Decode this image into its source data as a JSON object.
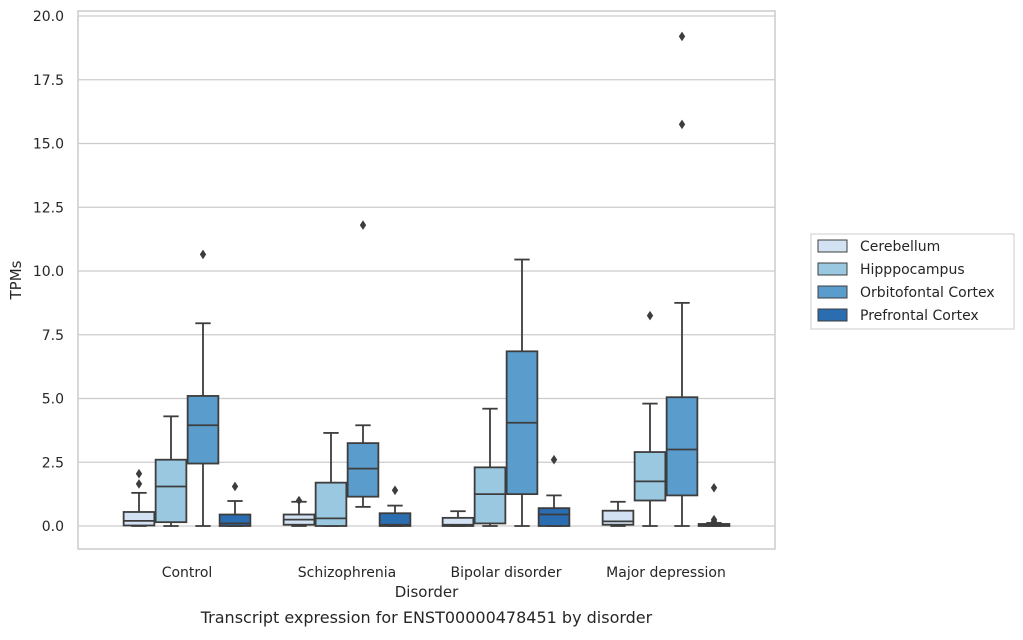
{
  "caption": "Transcript expression for ENST00000478451 by disorder",
  "chart_data": {
    "type": "box",
    "xlabel": "Disorder",
    "ylabel": "TPMs",
    "ylim": [
      -0.9,
      20.2
    ],
    "yticks": [
      "0.0",
      "2.5",
      "5.0",
      "7.5",
      "10.0",
      "12.5",
      "15.0",
      "17.5",
      "20.0"
    ],
    "ytick_values": [
      0,
      2.5,
      5,
      7.5,
      10,
      12.5,
      15,
      17.5,
      20
    ],
    "grid": true,
    "legend_position": "right",
    "categories": [
      "Control",
      "Schizophrenia",
      "Bipolar disorder",
      "Major depression"
    ],
    "series": [
      {
        "name": "Cerebellum",
        "color": "#d2e2f2",
        "boxes": [
          {
            "whislo": 0.0,
            "q1": 0.02,
            "med": 0.2,
            "q3": 0.55,
            "whishi": 1.3,
            "fliers": [
              1.65,
              2.05
            ]
          },
          {
            "whislo": 0.0,
            "q1": 0.05,
            "med": 0.25,
            "q3": 0.45,
            "whishi": 0.95,
            "fliers": [
              1.0
            ]
          },
          {
            "whislo": 0.0,
            "q1": 0.0,
            "med": 0.05,
            "q3": 0.32,
            "whishi": 0.58,
            "fliers": []
          },
          {
            "whislo": 0.0,
            "q1": 0.05,
            "med": 0.18,
            "q3": 0.6,
            "whishi": 0.95,
            "fliers": []
          }
        ]
      },
      {
        "name": "Hipppocampus",
        "color": "#9ac8e0",
        "boxes": [
          {
            "whislo": 0.0,
            "q1": 0.15,
            "med": 1.55,
            "q3": 2.6,
            "whishi": 4.3,
            "fliers": []
          },
          {
            "whislo": 0.0,
            "q1": 0.0,
            "med": 0.3,
            "q3": 1.7,
            "whishi": 3.65,
            "fliers": []
          },
          {
            "whislo": 0.0,
            "q1": 0.1,
            "med": 1.25,
            "q3": 2.3,
            "whishi": 4.6,
            "fliers": []
          },
          {
            "whislo": 0.0,
            "q1": 1.0,
            "med": 1.75,
            "q3": 2.9,
            "whishi": 4.8,
            "fliers": [
              8.25
            ]
          }
        ]
      },
      {
        "name": "Orbitofontal Cortex",
        "color": "#5a9dcd",
        "boxes": [
          {
            "whislo": 0.0,
            "q1": 2.45,
            "med": 3.95,
            "q3": 5.1,
            "whishi": 7.95,
            "fliers": [
              10.65
            ]
          },
          {
            "whislo": 0.75,
            "q1": 1.15,
            "med": 2.25,
            "q3": 3.25,
            "whishi": 3.95,
            "fliers": [
              11.8
            ]
          },
          {
            "whislo": 0.0,
            "q1": 1.25,
            "med": 4.05,
            "q3": 6.85,
            "whishi": 10.45,
            "fliers": []
          },
          {
            "whislo": 0.0,
            "q1": 1.2,
            "med": 3.0,
            "q3": 5.05,
            "whishi": 8.75,
            "fliers": [
              15.75,
              19.2
            ]
          }
        ]
      },
      {
        "name": "Prefrontal Cortex",
        "color": "#2a6db0",
        "boxes": [
          {
            "whislo": 0.0,
            "q1": 0.0,
            "med": 0.1,
            "q3": 0.45,
            "whishi": 0.98,
            "fliers": [
              1.55
            ]
          },
          {
            "whislo": 0.0,
            "q1": 0.0,
            "med": 0.05,
            "q3": 0.5,
            "whishi": 0.8,
            "fliers": [
              1.4
            ]
          },
          {
            "whislo": 0.0,
            "q1": 0.0,
            "med": 0.45,
            "q3": 0.7,
            "whishi": 1.2,
            "fliers": [
              2.6
            ]
          },
          {
            "whislo": 0.0,
            "q1": 0.0,
            "med": 0.02,
            "q3": 0.08,
            "whishi": 0.12,
            "fliers": [
              0.18,
              0.25,
              1.5
            ]
          }
        ]
      }
    ]
  }
}
